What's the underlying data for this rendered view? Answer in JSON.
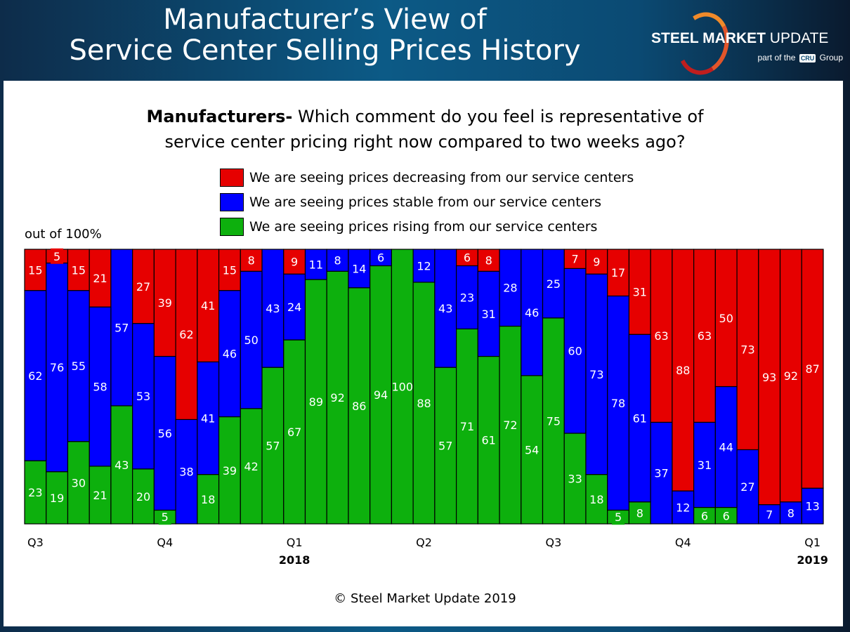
{
  "header": {
    "title_line1": "Manufacturer’s View of",
    "title_line2": "Service Center Selling Prices History",
    "logo_text": "STEEL MARKET UPDATE",
    "logo_sub": "part of the CRU Group"
  },
  "question": {
    "bold": "Manufacturers-",
    "text1": " Which comment do you feel is representative of",
    "text2": "service center pricing right now compared to two weeks ago?"
  },
  "chart_data": {
    "type": "bar",
    "stacked": true,
    "percent_stacked": true,
    "ylabel": "out of 100%",
    "ylim": [
      0,
      100
    ],
    "grid": false,
    "legend_placement": "top-center",
    "series": [
      {
        "name": "We are seeing prices rising from our service centers",
        "color": "#0db00d",
        "values": [
          23,
          19,
          30,
          21,
          43,
          20,
          5,
          0,
          18,
          39,
          42,
          57,
          67,
          89,
          92,
          86,
          94,
          100,
          88,
          57,
          71,
          61,
          72,
          54,
          75,
          33,
          18,
          5,
          8,
          0,
          0,
          6,
          6,
          0,
          0,
          0,
          0
        ]
      },
      {
        "name": "We are seeing prices stable from our service centers",
        "color": "#0000ff",
        "values": [
          62,
          76,
          55,
          58,
          57,
          53,
          56,
          38,
          41,
          46,
          50,
          43,
          24,
          11,
          8,
          14,
          6,
          0,
          12,
          43,
          23,
          31,
          28,
          46,
          25,
          60,
          73,
          78,
          61,
          37,
          12,
          31,
          44,
          27,
          7,
          8,
          13
        ]
      },
      {
        "name": "We are seeing prices decreasing from our service centers",
        "color": "#e60000",
        "values": [
          15,
          5,
          15,
          21,
          0,
          27,
          39,
          62,
          41,
          15,
          8,
          0,
          9,
          0,
          0,
          0,
          0,
          0,
          0,
          0,
          6,
          8,
          0,
          0,
          0,
          7,
          9,
          17,
          31,
          63,
          88,
          63,
          50,
          73,
          93,
          92,
          87
        ]
      }
    ],
    "x_tick_labels": [
      {
        "bar": 0,
        "quarter": "Q3",
        "year": ""
      },
      {
        "bar": 6,
        "quarter": "Q4",
        "year": ""
      },
      {
        "bar": 12,
        "quarter": "Q1",
        "year": "2018"
      },
      {
        "bar": 18,
        "quarter": "Q2",
        "year": ""
      },
      {
        "bar": 24,
        "quarter": "Q3",
        "year": ""
      },
      {
        "bar": 30,
        "quarter": "Q4",
        "year": ""
      },
      {
        "bar": 36,
        "quarter": "Q1",
        "year": "2019"
      }
    ]
  },
  "copyright": "© Steel Market Update 2019"
}
